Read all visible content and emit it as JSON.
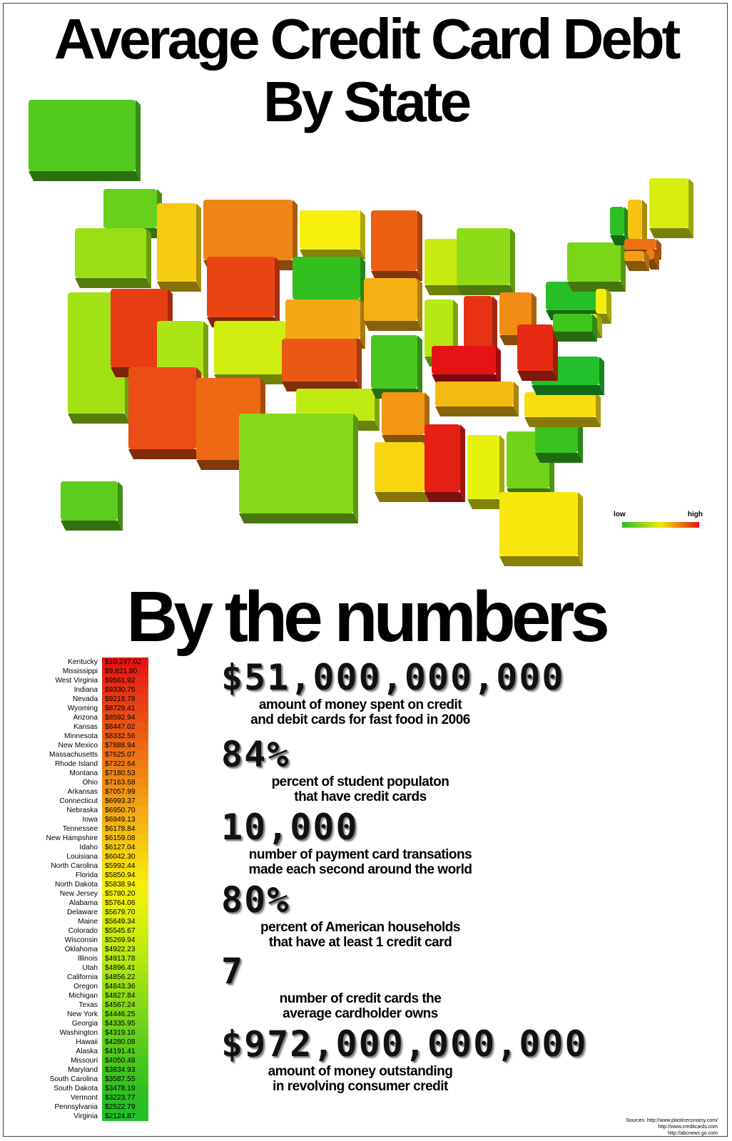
{
  "title_line1": "Average Credit Card Debt",
  "title_line2": "By State",
  "legend": {
    "low": "low",
    "high": "high"
  },
  "numbers_heading": "By the numbers",
  "ranking": [
    {
      "state": "Kentucky",
      "value": "$10,247.02",
      "color": "#e51414"
    },
    {
      "state": "Mississippi",
      "value": "$9,821.80",
      "color": "#e51f14"
    },
    {
      "state": "West Virginia",
      "value": "$9561.92",
      "color": "#e62a14"
    },
    {
      "state": "Indiana",
      "value": "$9330.75",
      "color": "#e73314"
    },
    {
      "state": "Nevada",
      "value": "$9218.76",
      "color": "#e83c14"
    },
    {
      "state": "Wyoming",
      "value": "$8729.41",
      "color": "#e94514"
    },
    {
      "state": "Arizona",
      "value": "$8592.94",
      "color": "#ea4e14"
    },
    {
      "state": "Kansas",
      "value": "$8447.02",
      "color": "#eb5714"
    },
    {
      "state": "Minnesota",
      "value": "$8332.56",
      "color": "#ec6014"
    },
    {
      "state": "New Mexico",
      "value": "$7888.94",
      "color": "#ed6914"
    },
    {
      "state": "Massachusetts",
      "value": "$7625.07",
      "color": "#ee7214"
    },
    {
      "state": "Rhode Island",
      "value": "$7322.64",
      "color": "#ef7b14"
    },
    {
      "state": "Montana",
      "value": "$7180.53",
      "color": "#f08414"
    },
    {
      "state": "Ohio",
      "value": "$7163.58",
      "color": "#f18d14"
    },
    {
      "state": "Arkansas",
      "value": "$7057.99",
      "color": "#f29614"
    },
    {
      "state": "Connecticut",
      "value": "$6993.37",
      "color": "#f39f14"
    },
    {
      "state": "Nebraska",
      "value": "$6950.70",
      "color": "#f4a814"
    },
    {
      "state": "Iowa",
      "value": "$6949.13",
      "color": "#f5b114"
    },
    {
      "state": "Tennessee",
      "value": "$6178.84",
      "color": "#f5ba12"
    },
    {
      "state": "New Hampshire",
      "value": "$6159.08",
      "color": "#f6c311"
    },
    {
      "state": "Idaho",
      "value": "$6127.04",
      "color": "#f6cc10"
    },
    {
      "state": "Louisiana",
      "value": "$6042.30",
      "color": "#f7d50f"
    },
    {
      "state": "North Carolina",
      "value": "$5992.44",
      "color": "#f7de0e"
    },
    {
      "state": "Florida",
      "value": "$5850.94",
      "color": "#f8e70d"
    },
    {
      "state": "North Dakota",
      "value": "$5838.94",
      "color": "#f6ef0c"
    },
    {
      "state": "New Jersey",
      "value": "$5780.20",
      "color": "#f0f00c"
    },
    {
      "state": "Alabama",
      "value": "$5764.06",
      "color": "#e8f00d"
    },
    {
      "state": "Delaware",
      "value": "$5679.70",
      "color": "#e0ef0e"
    },
    {
      "state": "Maine",
      "value": "$5649.34",
      "color": "#d8ee0f"
    },
    {
      "state": "Colorado",
      "value": "$5545.67",
      "color": "#d0ed10"
    },
    {
      "state": "Wisconsin",
      "value": "$5269.94",
      "color": "#c8ec11"
    },
    {
      "state": "Oklahoma",
      "value": "$4922.23",
      "color": "#c0eb12"
    },
    {
      "state": "Illinois",
      "value": "$4913.78",
      "color": "#b6e813"
    },
    {
      "state": "Utah",
      "value": "$4896.41",
      "color": "#ace514"
    },
    {
      "state": "California",
      "value": "$4856.22",
      "color": "#a2e215"
    },
    {
      "state": "Oregon",
      "value": "$4843.36",
      "color": "#98df16"
    },
    {
      "state": "Michigan",
      "value": "$4827.84",
      "color": "#8edc17"
    },
    {
      "state": "Texas",
      "value": "$4567.24",
      "color": "#84d918"
    },
    {
      "state": "New York",
      "value": "$4446.25",
      "color": "#7ad619"
    },
    {
      "state": "Georgia",
      "value": "$4335.95",
      "color": "#70d31a"
    },
    {
      "state": "Washington",
      "value": "$4319.16",
      "color": "#66d01b"
    },
    {
      "state": "Hawaii",
      "value": "$4280.08",
      "color": "#5ccd1c"
    },
    {
      "state": "Alaska",
      "value": "$4191.41",
      "color": "#52ca1d"
    },
    {
      "state": "Missouri",
      "value": "$4050.48",
      "color": "#4ac71e"
    },
    {
      "state": "Maryland",
      "value": "$3834.93",
      "color": "#42c41f"
    },
    {
      "state": "South Carolina",
      "value": "$3587.55",
      "color": "#3ac220"
    },
    {
      "state": "South Dakota",
      "value": "$3478.19",
      "color": "#32c021"
    },
    {
      "state": "Vermont",
      "value": "$3223.77",
      "color": "#2cbf24"
    },
    {
      "state": "Pennsylvania",
      "value": "$2522.79",
      "color": "#26bf27"
    },
    {
      "state": "Virginia",
      "value": "$2124.87",
      "color": "#22c02a"
    }
  ],
  "stats": [
    {
      "big": "$51,000,000,000",
      "desc_line1": "amount of money spent on credit",
      "desc_line2": "and debit cards for fast food in 2006"
    },
    {
      "big": "84%",
      "desc_line1": "percent of student populaton",
      "desc_line2": "that have credit cards"
    },
    {
      "big": "10,000",
      "desc_line1": "number of payment card transations",
      "desc_line2": "made each second around the world"
    },
    {
      "big": "80%",
      "desc_line1": "percent of American households",
      "desc_line2": "that have at least 1 credit card"
    },
    {
      "big": "7",
      "desc_line1": "number of credit cards the",
      "desc_line2": "average cardholder owns"
    },
    {
      "big": "$972,000,000,000",
      "desc_line1": "amount of money outstanding",
      "desc_line2": "in revolving consumer credit"
    }
  ],
  "sources": {
    "line1": "Sources:  http://www.plasticeconomy.com/",
    "line2": "http://www.creditcards.com",
    "line3": "http://abcnews.go.com"
  },
  "colors": {
    "low": "#22c02a",
    "mid": "#f0e80a",
    "high": "#e51414"
  },
  "map_states": [
    {
      "abbr": "AK",
      "color": "#52ca1d"
    },
    {
      "abbr": "WA",
      "color": "#66d01b"
    },
    {
      "abbr": "OR",
      "color": "#98df16"
    },
    {
      "abbr": "CA",
      "color": "#a2e215"
    },
    {
      "abbr": "ID",
      "color": "#f6cc10"
    },
    {
      "abbr": "NV",
      "color": "#e83c14"
    },
    {
      "abbr": "MT",
      "color": "#f08414"
    },
    {
      "abbr": "WY",
      "color": "#e94514"
    },
    {
      "abbr": "UT",
      "color": "#ace514"
    },
    {
      "abbr": "AZ",
      "color": "#ea4e14"
    },
    {
      "abbr": "CO",
      "color": "#d0ed10"
    },
    {
      "abbr": "NM",
      "color": "#ed6914"
    },
    {
      "abbr": "ND",
      "color": "#f6ef0c"
    },
    {
      "abbr": "SD",
      "color": "#32c021"
    },
    {
      "abbr": "NE",
      "color": "#f4a814"
    },
    {
      "abbr": "KS",
      "color": "#eb5714"
    },
    {
      "abbr": "OK",
      "color": "#c0eb12"
    },
    {
      "abbr": "TX",
      "color": "#84d918"
    },
    {
      "abbr": "MN",
      "color": "#ec6014"
    },
    {
      "abbr": "IA",
      "color": "#f5b114"
    },
    {
      "abbr": "MO",
      "color": "#4ac71e"
    },
    {
      "abbr": "AR",
      "color": "#f29614"
    },
    {
      "abbr": "LA",
      "color": "#f7d50f"
    },
    {
      "abbr": "WI",
      "color": "#c8ec11"
    },
    {
      "abbr": "IL",
      "color": "#b6e813"
    },
    {
      "abbr": "MI",
      "color": "#8edc17"
    },
    {
      "abbr": "IN",
      "color": "#e73314"
    },
    {
      "abbr": "OH",
      "color": "#f18d14"
    },
    {
      "abbr": "KY",
      "color": "#e51414"
    },
    {
      "abbr": "TN",
      "color": "#f5ba12"
    },
    {
      "abbr": "MS",
      "color": "#e51f14"
    },
    {
      "abbr": "AL",
      "color": "#e8f00d"
    },
    {
      "abbr": "GA",
      "color": "#70d31a"
    },
    {
      "abbr": "FL",
      "color": "#f8e70d"
    },
    {
      "abbr": "SC",
      "color": "#3ac220"
    },
    {
      "abbr": "NC",
      "color": "#f7de0e"
    },
    {
      "abbr": "VA",
      "color": "#22c02a"
    },
    {
      "abbr": "WV",
      "color": "#e62a14"
    },
    {
      "abbr": "PA",
      "color": "#26bf27"
    },
    {
      "abbr": "NY",
      "color": "#7ad619"
    },
    {
      "abbr": "VT",
      "color": "#2cbf24"
    },
    {
      "abbr": "NH",
      "color": "#f6c311"
    },
    {
      "abbr": "ME",
      "color": "#d8ee0f"
    },
    {
      "abbr": "MA",
      "color": "#ee7214"
    },
    {
      "abbr": "RI",
      "color": "#ef7b14"
    },
    {
      "abbr": "CT",
      "color": "#f39f14"
    },
    {
      "abbr": "NJ",
      "color": "#f0f00c"
    },
    {
      "abbr": "DE",
      "color": "#e0ef0e"
    },
    {
      "abbr": "MD",
      "color": "#42c41f"
    },
    {
      "abbr": "HI",
      "color": "#5ccd1c"
    }
  ]
}
